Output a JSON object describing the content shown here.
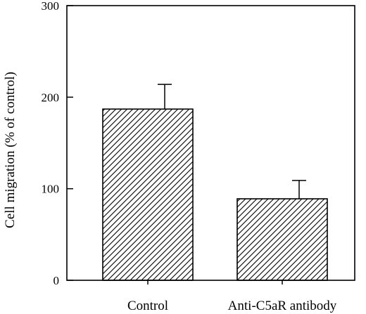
{
  "chart_data": {
    "type": "bar",
    "title": "",
    "xlabel": "",
    "ylabel": "Cell migration (% of control)",
    "categories": [
      "Control",
      "Anti-C5aR antibody"
    ],
    "values": [
      187,
      89
    ],
    "errors": [
      27,
      20
    ],
    "ylim": [
      0,
      300
    ],
    "yticks": [
      0,
      100,
      200,
      300
    ],
    "grid": false,
    "legend": "none",
    "bar_fill": "diagonal-hatch",
    "colors": {
      "stroke": "#000000",
      "background": "#ffffff"
    }
  }
}
